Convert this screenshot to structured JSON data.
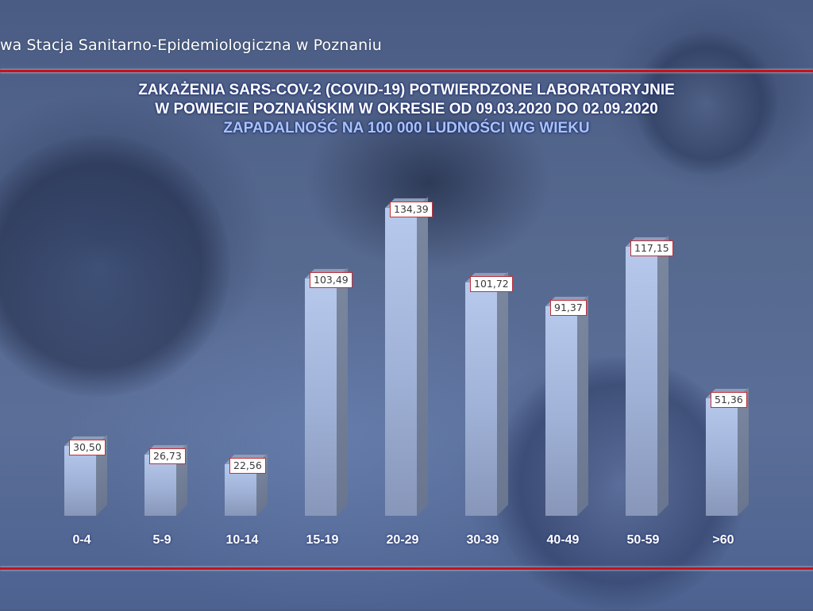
{
  "header": {
    "organization": "wa Stacja Sanitarno-Epidemiologiczna w Poznaniu"
  },
  "title": {
    "line1": "ZAKAŻENIA SARS-COV-2 (COVID-19) POTWIERDZONE LABORATORYJNIE",
    "line2": "W POWIECIE POZNAŃSKIM W OKRESIE OD 09.03.2020 DO 02.09.2020",
    "subtitle": "ZAPADALNOŚĆ NA 100 000 LUDNOŚCI WG WIEKU"
  },
  "colors": {
    "rule": "#c4121a",
    "bar_front": "#a9bbe0",
    "bar_side": "#727f98",
    "label_border": "#c0313a",
    "title": "#ffffff",
    "subtitle": "#a9c3f5"
  },
  "chart_data": {
    "type": "bar",
    "title": "ZAKAŻENIA SARS-COV-2 (COVID-19) POTWIERDZONE LABORATORYJNIE W POWIECIE POZNAŃSKIM W OKRESIE OD 09.03.2020 DO 02.09.2020",
    "subtitle": "ZAPADALNOŚĆ NA 100 000 LUDNOŚCI WG WIEKU",
    "xlabel": "",
    "ylabel": "",
    "categories": [
      "0-4",
      "5-9",
      "10-14",
      "15-19",
      "20-29",
      "30-39",
      "40-49",
      "50-59",
      ">60"
    ],
    "values": [
      30.5,
      26.73,
      22.56,
      103.49,
      134.39,
      101.72,
      91.37,
      117.15,
      51.36
    ],
    "value_labels": [
      "30,50",
      "26,73",
      "22,56",
      "103,49",
      "134,39",
      "101,72",
      "91,37",
      "117,15",
      "51,36"
    ],
    "ylim": [
      0,
      140
    ],
    "grid": false,
    "legend": null,
    "style": "3d-column"
  }
}
